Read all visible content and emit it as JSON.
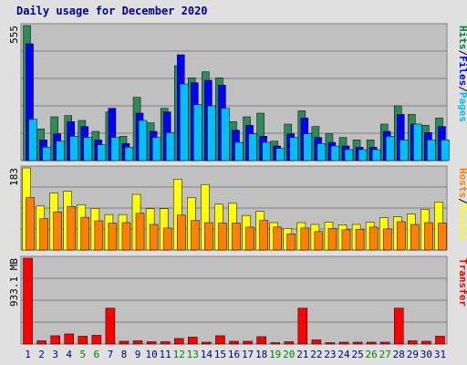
{
  "title": "Daily usage for December 2020",
  "chart_data": [
    {
      "type": "bar",
      "name": "hits-files-pages",
      "max_label": "555",
      "side_labels": [
        "Hits",
        "/",
        "Files",
        "/",
        "Pages"
      ],
      "side_colors": [
        "#008040",
        "#000000",
        "#0000ff",
        "#000000",
        "#00bfff"
      ],
      "x": [
        1,
        2,
        3,
        4,
        5,
        6,
        7,
        8,
        9,
        10,
        11,
        12,
        13,
        14,
        15,
        16,
        17,
        18,
        19,
        20,
        21,
        22,
        23,
        24,
        25,
        26,
        27,
        28,
        29,
        30,
        31
      ],
      "ylim": [
        0,
        555
      ],
      "series": [
        {
          "name": "Hits",
          "color": "#2e8b57",
          "values": [
            555,
            130,
            180,
            185,
            165,
            120,
            200,
            100,
            260,
            155,
            215,
            390,
            340,
            365,
            340,
            160,
            180,
            195,
            80,
            150,
            205,
            140,
            110,
            95,
            85,
            85,
            150,
            225,
            190,
            145,
            175
          ]
        },
        {
          "name": "Files",
          "color": "#0000ff",
          "values": [
            480,
            85,
            110,
            160,
            140,
            85,
            215,
            70,
            195,
            120,
            200,
            435,
            320,
            330,
            310,
            125,
            145,
            100,
            60,
            110,
            175,
            95,
            75,
            60,
            55,
            55,
            120,
            190,
            150,
            115,
            140
          ]
        },
        {
          "name": "Pages",
          "color": "#00bfff",
          "values": [
            170,
            55,
            80,
            100,
            95,
            65,
            95,
            55,
            165,
            95,
            115,
            315,
            230,
            225,
            215,
            75,
            110,
            75,
            50,
            95,
            110,
            70,
            60,
            45,
            45,
            45,
            100,
            85,
            150,
            85,
            85
          ]
        }
      ]
    },
    {
      "type": "bar",
      "name": "hosts-visits",
      "max_label": "183",
      "side_labels": [
        "Hosts",
        "/",
        "Visits"
      ],
      "side_colors": [
        "#ff8000",
        "#000000",
        "#ffff00"
      ],
      "x": [
        1,
        2,
        3,
        4,
        5,
        6,
        7,
        8,
        9,
        10,
        11,
        12,
        13,
        14,
        15,
        16,
        17,
        18,
        19,
        20,
        21,
        22,
        23,
        24,
        25,
        26,
        27,
        28,
        29,
        30,
        31
      ],
      "ylim": [
        0,
        183
      ],
      "series": [
        {
          "name": "Visits",
          "color": "#ffff00",
          "values": [
            183,
            98,
            127,
            131,
            101,
            93,
            79,
            79,
            124,
            92,
            92,
            158,
            117,
            146,
            102,
            104,
            77,
            86,
            61,
            48,
            61,
            57,
            62,
            56,
            57,
            62,
            72,
            74,
            80,
            91,
            107
          ]
        },
        {
          "name": "Hosts",
          "color": "#ff8000",
          "values": [
            117,
            70,
            85,
            97,
            73,
            65,
            60,
            61,
            82,
            57,
            49,
            78,
            66,
            61,
            60,
            60,
            51,
            66,
            51,
            36,
            49,
            41,
            48,
            45,
            46,
            51,
            47,
            63,
            57,
            61,
            60
          ]
        }
      ]
    },
    {
      "type": "bar",
      "name": "transfer",
      "max_label": "933.1 MB",
      "side_labels": [
        "Transfer"
      ],
      "side_colors": [
        "#ff0000"
      ],
      "x": [
        1,
        2,
        3,
        4,
        5,
        6,
        7,
        8,
        9,
        10,
        11,
        12,
        13,
        14,
        15,
        16,
        17,
        18,
        19,
        20,
        21,
        22,
        23,
        24,
        25,
        26,
        27,
        28,
        29,
        30,
        31
      ],
      "ylim": [
        0,
        933.1
      ],
      "series": [
        {
          "name": "Transfer",
          "color": "#ff0000",
          "values": [
            933.1,
            35,
            90,
            110,
            85,
            95,
            390,
            30,
            35,
            25,
            25,
            60,
            75,
            20,
            90,
            30,
            30,
            80,
            15,
            25,
            390,
            45,
            15,
            20,
            20,
            20,
            20,
            390,
            35,
            30,
            85
          ]
        }
      ]
    }
  ],
  "weekend_days": [
    5,
    6,
    12,
    13,
    19,
    20,
    26,
    27
  ],
  "colors": {
    "weekday": "#000080",
    "weekend": "#008000",
    "background": "#e0e0e0",
    "plot": "#c0c0c0"
  }
}
